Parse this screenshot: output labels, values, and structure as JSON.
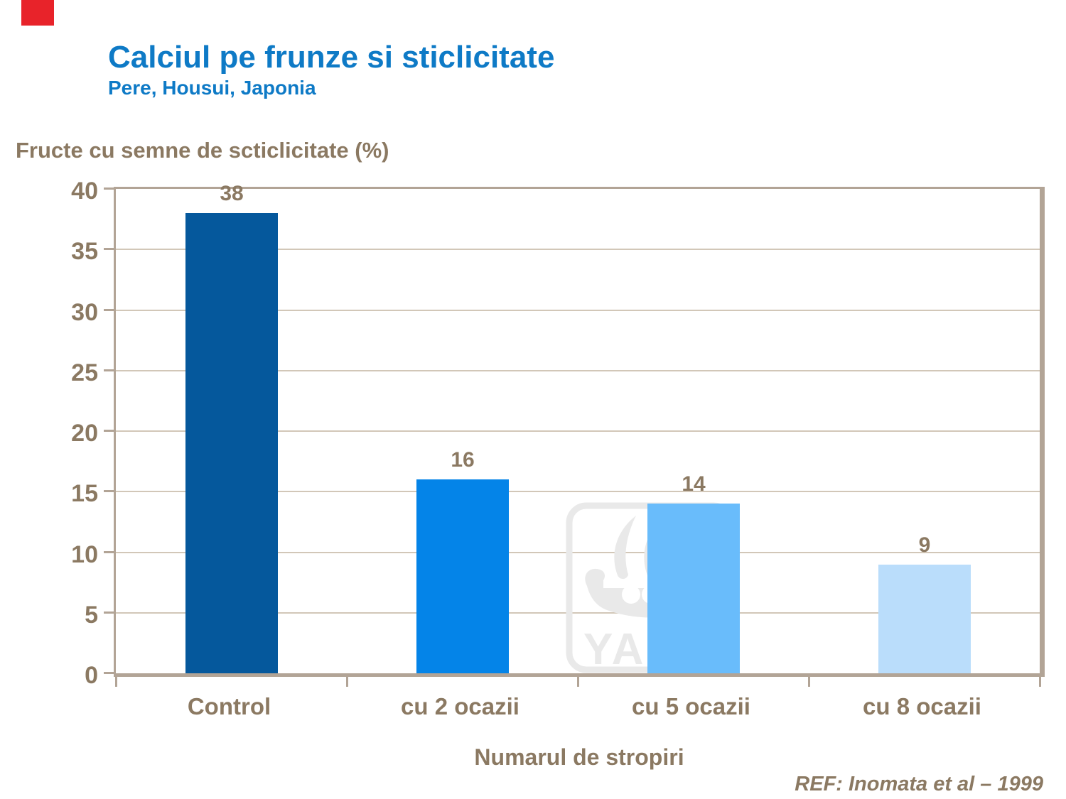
{
  "slide": {
    "title": "Calciul pe frunze si sticlicitate",
    "subtitle": "Pere, Housui, Japonia",
    "reference": "REF: Inomata et al – 1999",
    "title_color": "#0E7AC6",
    "text_color": "#8B7962",
    "red_marker_color": "#E8232A"
  },
  "watermark": {
    "name": "YARA",
    "label": "YARA",
    "color": "#E9E9E9"
  },
  "chart_data": {
    "type": "bar",
    "title": "Fructe cu semne de scticlicitate (%)",
    "ylabel": "Fructe cu semne de scticlicitate (%)",
    "xlabel": "Numarul de stropiri",
    "categories": [
      "Control",
      "cu 2 ocazii",
      "cu 5 ocazii",
      "cu 8 ocazii"
    ],
    "values": [
      38,
      16,
      14,
      9
    ],
    "bar_colors": [
      "#05589C",
      "#0484E8",
      "#69BCFB",
      "#BADDFB"
    ],
    "ylim": [
      0,
      40
    ],
    "ytick_step": 5,
    "grid": true,
    "legend": false,
    "frame_color": "#B2A496",
    "gridline_color": "#D2C7B8"
  }
}
